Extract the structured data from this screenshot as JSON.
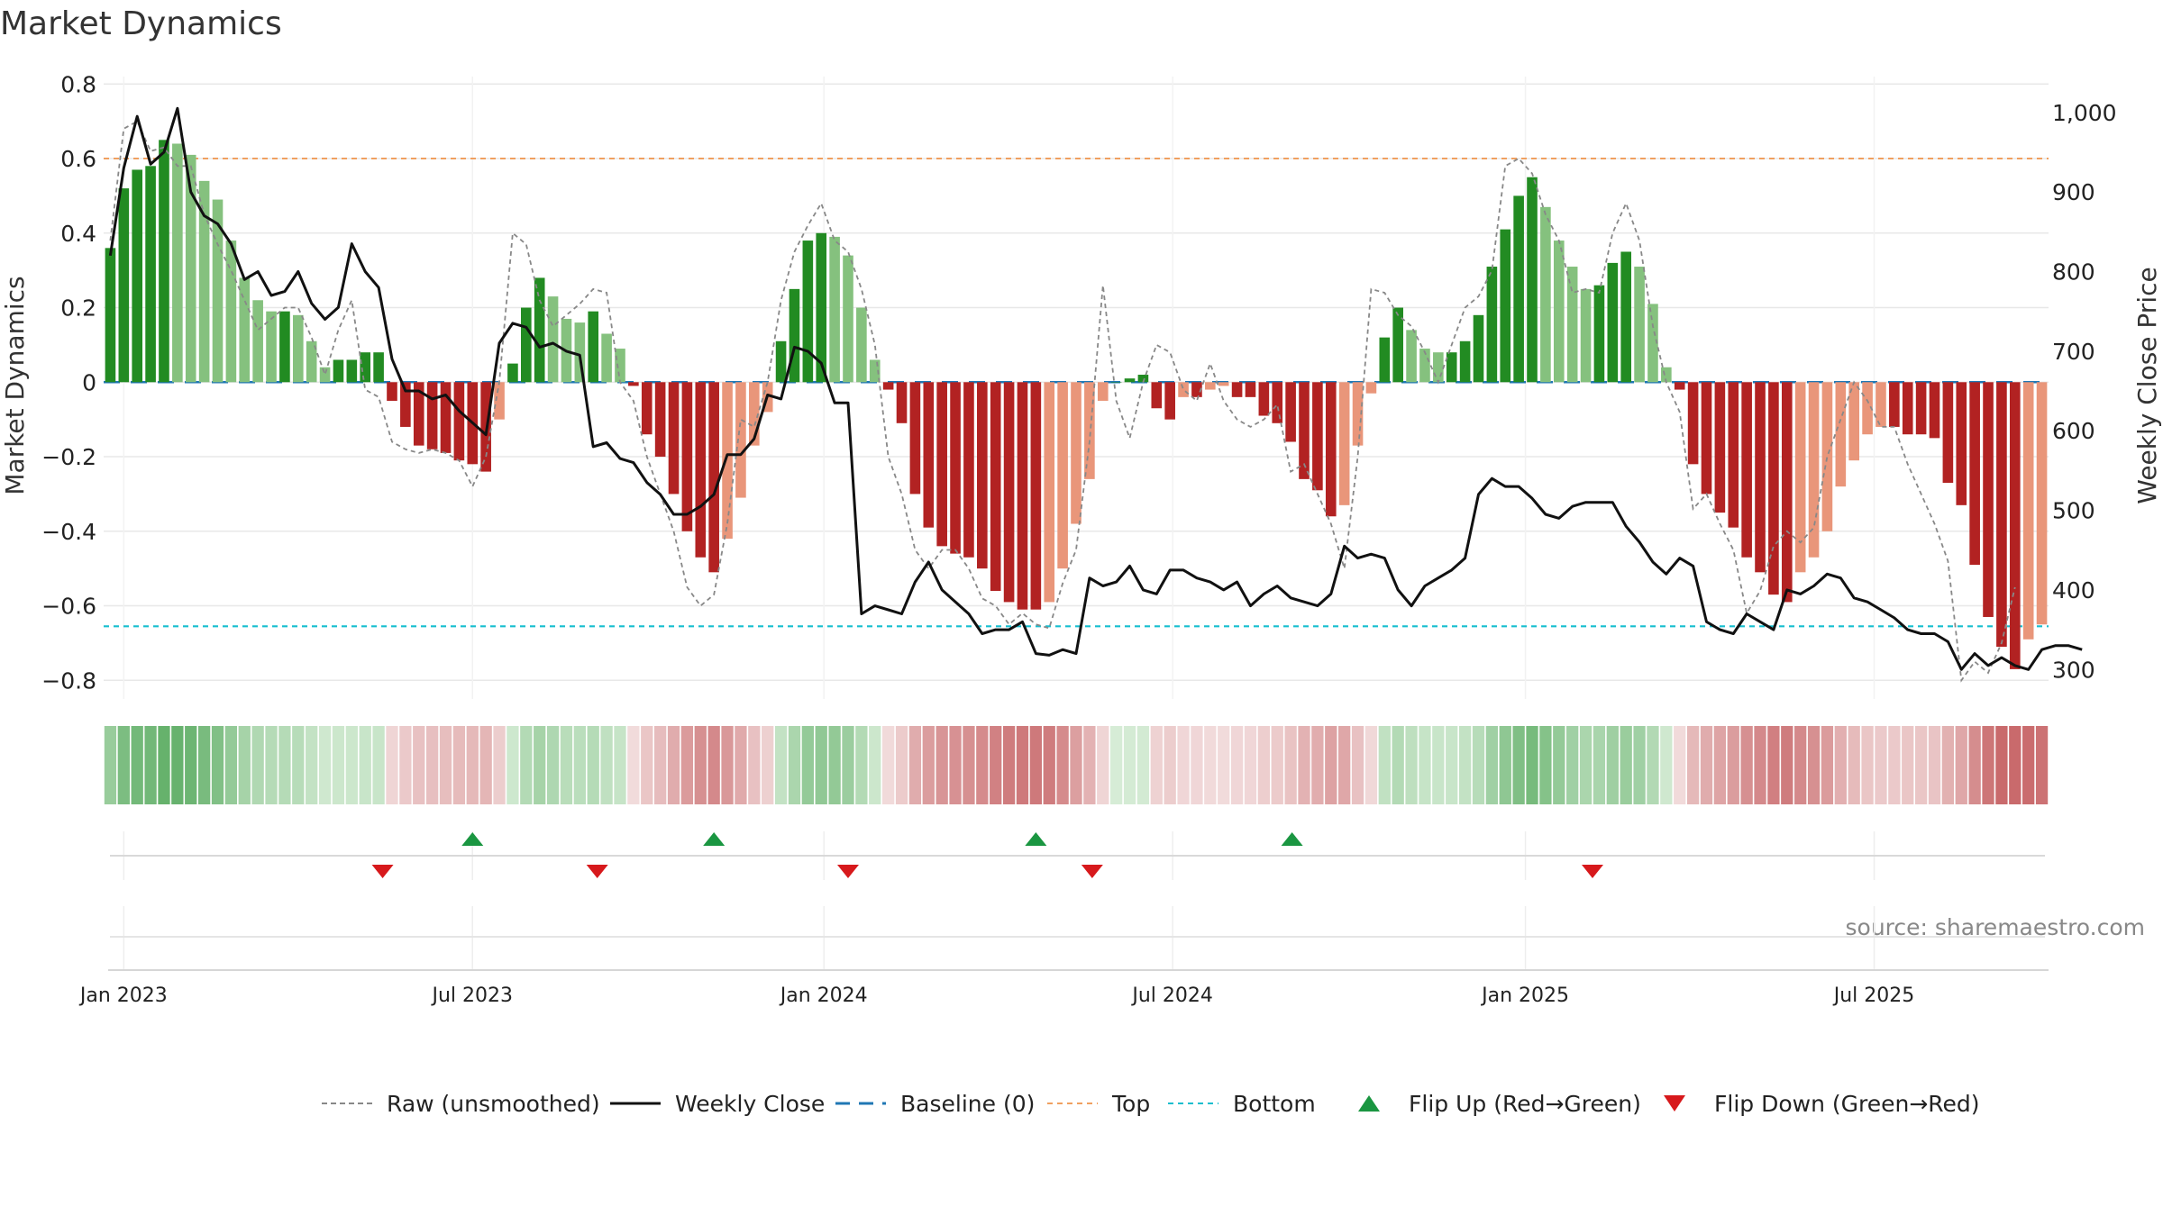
{
  "chart_data": {
    "type": "bar",
    "title": "Market Dynamics",
    "ylabel_left": "Market Dynamics",
    "ylabel_right": "Weekly Close Price",
    "ylim_left": [
      -0.85,
      0.82
    ],
    "ylim_right": [
      263,
      1045
    ],
    "y_ticks_left": [
      {
        "v": 0.8,
        "label": "0.8"
      },
      {
        "v": 0.6,
        "label": "0.6"
      },
      {
        "v": 0.4,
        "label": "0.4"
      },
      {
        "v": 0.2,
        "label": "0.2"
      },
      {
        "v": 0,
        "label": "0"
      },
      {
        "v": -0.2,
        "label": "−0.2"
      },
      {
        "v": -0.4,
        "label": "−0.4"
      },
      {
        "v": -0.6,
        "label": "−0.6"
      },
      {
        "v": -0.8,
        "label": "−0.8"
      }
    ],
    "y_ticks_right": [
      {
        "v": 1000,
        "label": "1,000"
      },
      {
        "v": 900,
        "label": "900"
      },
      {
        "v": 800,
        "label": "800"
      },
      {
        "v": 700,
        "label": "700"
      },
      {
        "v": 600,
        "label": "600"
      },
      {
        "v": 500,
        "label": "500"
      },
      {
        "v": 400,
        "label": "400"
      },
      {
        "v": 300,
        "label": "300"
      }
    ],
    "x_ticks": [
      {
        "week": 1.5,
        "label": "Jan 2023"
      },
      {
        "week": 27.5,
        "label": "Jul 2023"
      },
      {
        "week": 53.7,
        "label": "Jan 2024"
      },
      {
        "week": 79.7,
        "label": "Jul 2024"
      },
      {
        "week": 106,
        "label": "Jan 2025"
      },
      {
        "week": 132,
        "label": "Jul 2025"
      }
    ],
    "top_threshold": 0.6,
    "bottom_threshold": -0.655,
    "baseline": 0,
    "values": [
      0.36,
      0.52,
      0.57,
      0.58,
      0.65,
      0.64,
      0.61,
      0.54,
      0.49,
      0.38,
      0.28,
      0.22,
      0.19,
      0.19,
      0.18,
      0.11,
      0.04,
      0.06,
      0.06,
      0.08,
      0.08,
      -0.05,
      -0.12,
      -0.17,
      -0.18,
      -0.19,
      -0.21,
      -0.22,
      -0.24,
      -0.1,
      0.05,
      0.2,
      0.28,
      0.23,
      0.17,
      0.16,
      0.19,
      0.13,
      0.09,
      -0.01,
      -0.14,
      -0.2,
      -0.3,
      -0.4,
      -0.47,
      -0.51,
      -0.42,
      -0.31,
      -0.17,
      -0.08,
      0.11,
      0.25,
      0.38,
      0.4,
      0.39,
      0.34,
      0.2,
      0.06,
      -0.02,
      -0.11,
      -0.3,
      -0.39,
      -0.44,
      -0.46,
      -0.47,
      -0.5,
      -0.56,
      -0.59,
      -0.61,
      -0.61,
      -0.59,
      -0.5,
      -0.38,
      -0.26,
      -0.05,
      0.0,
      0.01,
      0.02,
      -0.07,
      -0.1,
      -0.04,
      -0.04,
      -0.02,
      -0.01,
      -0.04,
      -0.04,
      -0.09,
      -0.11,
      -0.16,
      -0.26,
      -0.29,
      -0.36,
      -0.33,
      -0.17,
      -0.03,
      0.12,
      0.2,
      0.14,
      0.09,
      0.08,
      0.08,
      0.11,
      0.18,
      0.31,
      0.41,
      0.5,
      0.55,
      0.47,
      0.38,
      0.31,
      0.25,
      0.26,
      0.32,
      0.35,
      0.31,
      0.21,
      0.04,
      -0.02,
      -0.22,
      -0.3,
      -0.35,
      -0.39,
      -0.47,
      -0.51,
      -0.57,
      -0.59,
      -0.51,
      -0.47,
      -0.4,
      -0.28,
      -0.21,
      -0.14,
      -0.12,
      -0.12,
      -0.14,
      -0.14,
      -0.15,
      -0.27,
      -0.33,
      -0.49,
      -0.63,
      -0.71,
      -0.77,
      -0.69,
      -0.65
    ],
    "raw_values": [
      0.38,
      0.68,
      0.7,
      0.62,
      0.63,
      0.58,
      0.58,
      0.45,
      0.37,
      0.3,
      0.22,
      0.14,
      0.17,
      0.2,
      0.2,
      0.12,
      0.02,
      0.14,
      0.22,
      -0.02,
      -0.04,
      -0.16,
      -0.18,
      -0.19,
      -0.18,
      -0.19,
      -0.21,
      -0.28,
      -0.2,
      0.0,
      0.4,
      0.37,
      0.22,
      0.15,
      0.18,
      0.21,
      0.25,
      0.24,
      0.0,
      -0.05,
      -0.2,
      -0.3,
      -0.4,
      -0.55,
      -0.6,
      -0.57,
      -0.38,
      -0.1,
      -0.12,
      0.0,
      0.22,
      0.35,
      0.42,
      0.48,
      0.38,
      0.35,
      0.25,
      0.1,
      -0.2,
      -0.3,
      -0.45,
      -0.5,
      -0.45,
      -0.45,
      -0.5,
      -0.58,
      -0.6,
      -0.65,
      -0.62,
      -0.65,
      -0.66,
      -0.54,
      -0.45,
      -0.16,
      0.26,
      -0.05,
      -0.15,
      0.0,
      0.1,
      0.08,
      -0.02,
      -0.05,
      0.05,
      -0.05,
      -0.1,
      -0.12,
      -0.1,
      -0.06,
      -0.24,
      -0.22,
      -0.3,
      -0.38,
      -0.5,
      -0.2,
      0.25,
      0.24,
      0.18,
      0.15,
      0.08,
      0.0,
      0.1,
      0.2,
      0.23,
      0.3,
      0.58,
      0.6,
      0.56,
      0.45,
      0.38,
      0.24,
      0.25,
      0.24,
      0.4,
      0.48,
      0.38,
      0.15,
      0.0,
      -0.08,
      -0.34,
      -0.3,
      -0.38,
      -0.45,
      -0.62,
      -0.56,
      -0.44,
      -0.4,
      -0.43,
      -0.39,
      -0.2,
      -0.1,
      0.0,
      -0.05,
      -0.12,
      -0.12,
      -0.22,
      -0.3,
      -0.38,
      -0.48,
      -0.8,
      -0.75,
      -0.78,
      -0.7,
      -0.55
    ],
    "price": [
      820,
      930,
      995,
      935,
      950,
      1005,
      900,
      870,
      860,
      835,
      790,
      800,
      770,
      775,
      800,
      760,
      740,
      755,
      835,
      800,
      780,
      690,
      650,
      650,
      640,
      645,
      625,
      610,
      595,
      710,
      735,
      730,
      705,
      710,
      700,
      695,
      580,
      585,
      565,
      560,
      535,
      520,
      495,
      495,
      505,
      520,
      570,
      570,
      590,
      645,
      640,
      705,
      700,
      685,
      635,
      635,
      370,
      380,
      375,
      370,
      410,
      435,
      400,
      385,
      370,
      345,
      350,
      350,
      360,
      320,
      318,
      325,
      320,
      415,
      405,
      410,
      430,
      400,
      395,
      425,
      425,
      415,
      410,
      400,
      410,
      380,
      395,
      405,
      390,
      385,
      380,
      395,
      455,
      440,
      445,
      440,
      400,
      380,
      405,
      415,
      425,
      440,
      520,
      540,
      530,
      530,
      515,
      495,
      490,
      505,
      510,
      510,
      510,
      480,
      460,
      435,
      420,
      440,
      430,
      360,
      350,
      345,
      370,
      360,
      350,
      400,
      395,
      405,
      420,
      415,
      390,
      385,
      375,
      365,
      350,
      345,
      345,
      335,
      300,
      320,
      305,
      315,
      305,
      300,
      325,
      330,
      330,
      325
    ],
    "flip_up_weeks": [
      27.5,
      45.5,
      69.5,
      88.6
    ],
    "flip_down_weeks": [
      20.8,
      36.8,
      55.5,
      73.7,
      111
    ],
    "legend": [
      {
        "key": "raw",
        "label": "Raw (unsmoothed)"
      },
      {
        "key": "close",
        "label": "Weekly Close"
      },
      {
        "key": "baseline",
        "label": "Baseline (0)"
      },
      {
        "key": "top",
        "label": "Top"
      },
      {
        "key": "bottom",
        "label": "Bottom"
      },
      {
        "key": "up",
        "label": "Flip Up (Red→Green)"
      },
      {
        "key": "down",
        "label": "Flip Down (Green→Red)"
      }
    ],
    "source": "source: sharemaestro.com"
  },
  "colors": {
    "strong_green": "#228b22",
    "light_green": "#85c17e",
    "strong_red": "#b22222",
    "light_red": "#e9967a",
    "price_line": "#111111",
    "raw_line": "#888888",
    "baseline": "#1f77b4",
    "top_line": "#f0a060",
    "bottom_line": "#17becf",
    "flip_up": "#1a9641",
    "flip_down": "#d7191c",
    "grid": "#e8e8e8",
    "text": "#222222"
  }
}
